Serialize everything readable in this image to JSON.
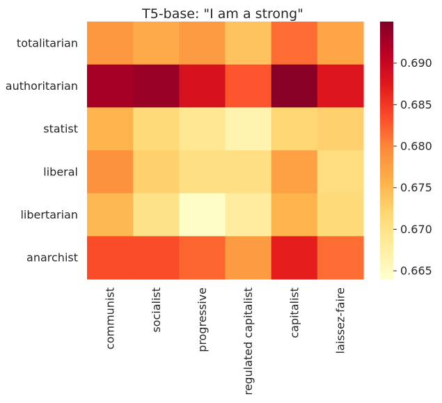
{
  "chart_data": {
    "type": "heatmap",
    "title": "T5-base: \"I am a strong\"",
    "rows": [
      "totalitarian",
      "authoritarian",
      "statist",
      "liberal",
      "libertarian",
      "anarchist"
    ],
    "columns": [
      "communist",
      "socialist",
      "progressive",
      "regulated capitalist",
      "capitalist",
      "laissez-faire"
    ],
    "values": [
      [
        0.6785,
        0.6765,
        0.678,
        0.674,
        0.6815,
        0.677
      ],
      [
        0.6925,
        0.6935,
        0.6885,
        0.683,
        0.6945,
        0.688
      ],
      [
        0.6755,
        0.6715,
        0.669,
        0.6665,
        0.672,
        0.6725
      ],
      [
        0.679,
        0.6725,
        0.6705,
        0.6705,
        0.6775,
        0.671
      ],
      [
        0.675,
        0.67,
        0.6645,
        0.668,
        0.6755,
        0.6715
      ],
      [
        0.6835,
        0.6835,
        0.682,
        0.678,
        0.687,
        0.6815
      ]
    ],
    "colorbar": {
      "colormap": "YlOrRd",
      "vmin": 0.664,
      "vmax": 0.695,
      "ticks": [
        0.69,
        0.685,
        0.68,
        0.675,
        0.67,
        0.665
      ],
      "tick_labels": [
        "0.690",
        "0.685",
        "0.680",
        "0.675",
        "0.670",
        "0.665"
      ]
    },
    "grid": false
  }
}
